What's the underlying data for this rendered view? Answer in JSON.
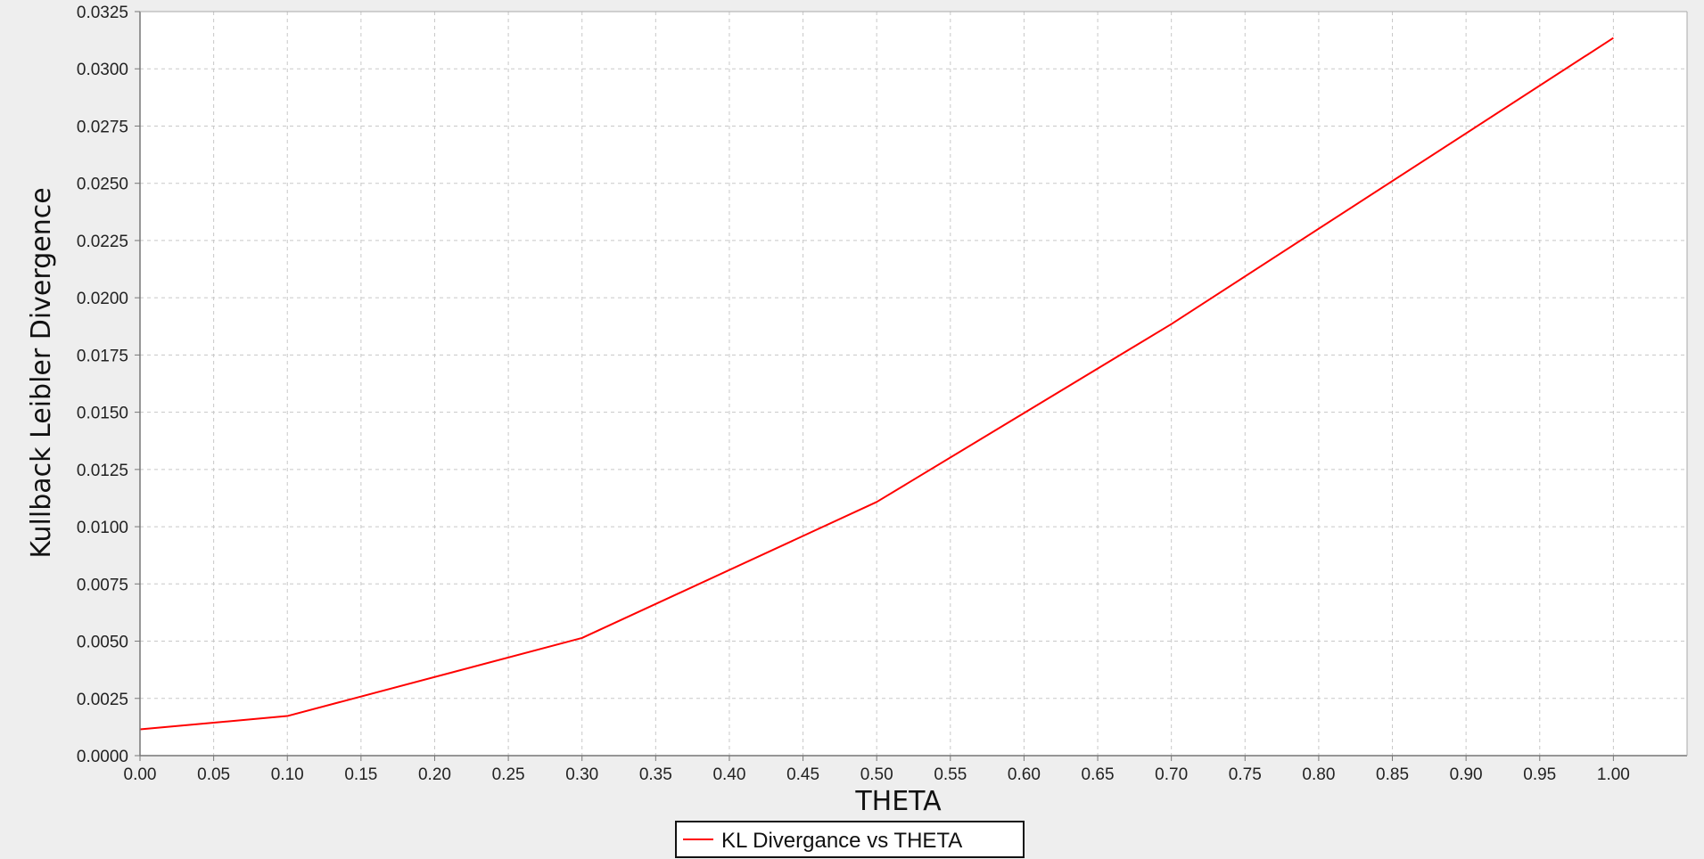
{
  "chart_data": {
    "type": "line",
    "title": "",
    "xlabel": "THETA",
    "ylabel": "Kullback Leibler Divergence",
    "xlim": [
      0.0,
      1.05
    ],
    "ylim": [
      0.0,
      0.0325
    ],
    "x_ticks": [
      "0.00",
      "0.05",
      "0.10",
      "0.15",
      "0.20",
      "0.25",
      "0.30",
      "0.35",
      "0.40",
      "0.45",
      "0.50",
      "0.55",
      "0.60",
      "0.65",
      "0.70",
      "0.75",
      "0.80",
      "0.85",
      "0.90",
      "0.95",
      "1.00"
    ],
    "y_ticks": [
      "0.0000",
      "0.0025",
      "0.0050",
      "0.0075",
      "0.0100",
      "0.0125",
      "0.0150",
      "0.0175",
      "0.0200",
      "0.0225",
      "0.0250",
      "0.0275",
      "0.0300",
      "0.0325"
    ],
    "grid": true,
    "legend_position": "bottom-center",
    "series": [
      {
        "name": "KL Divergance vs THETA",
        "color": "#ff0000",
        "x": [
          0.0,
          0.1,
          0.3,
          0.5,
          0.7,
          1.0
        ],
        "y": [
          0.00115,
          0.00173,
          0.00514,
          0.01108,
          0.01885,
          0.03135
        ]
      }
    ]
  }
}
